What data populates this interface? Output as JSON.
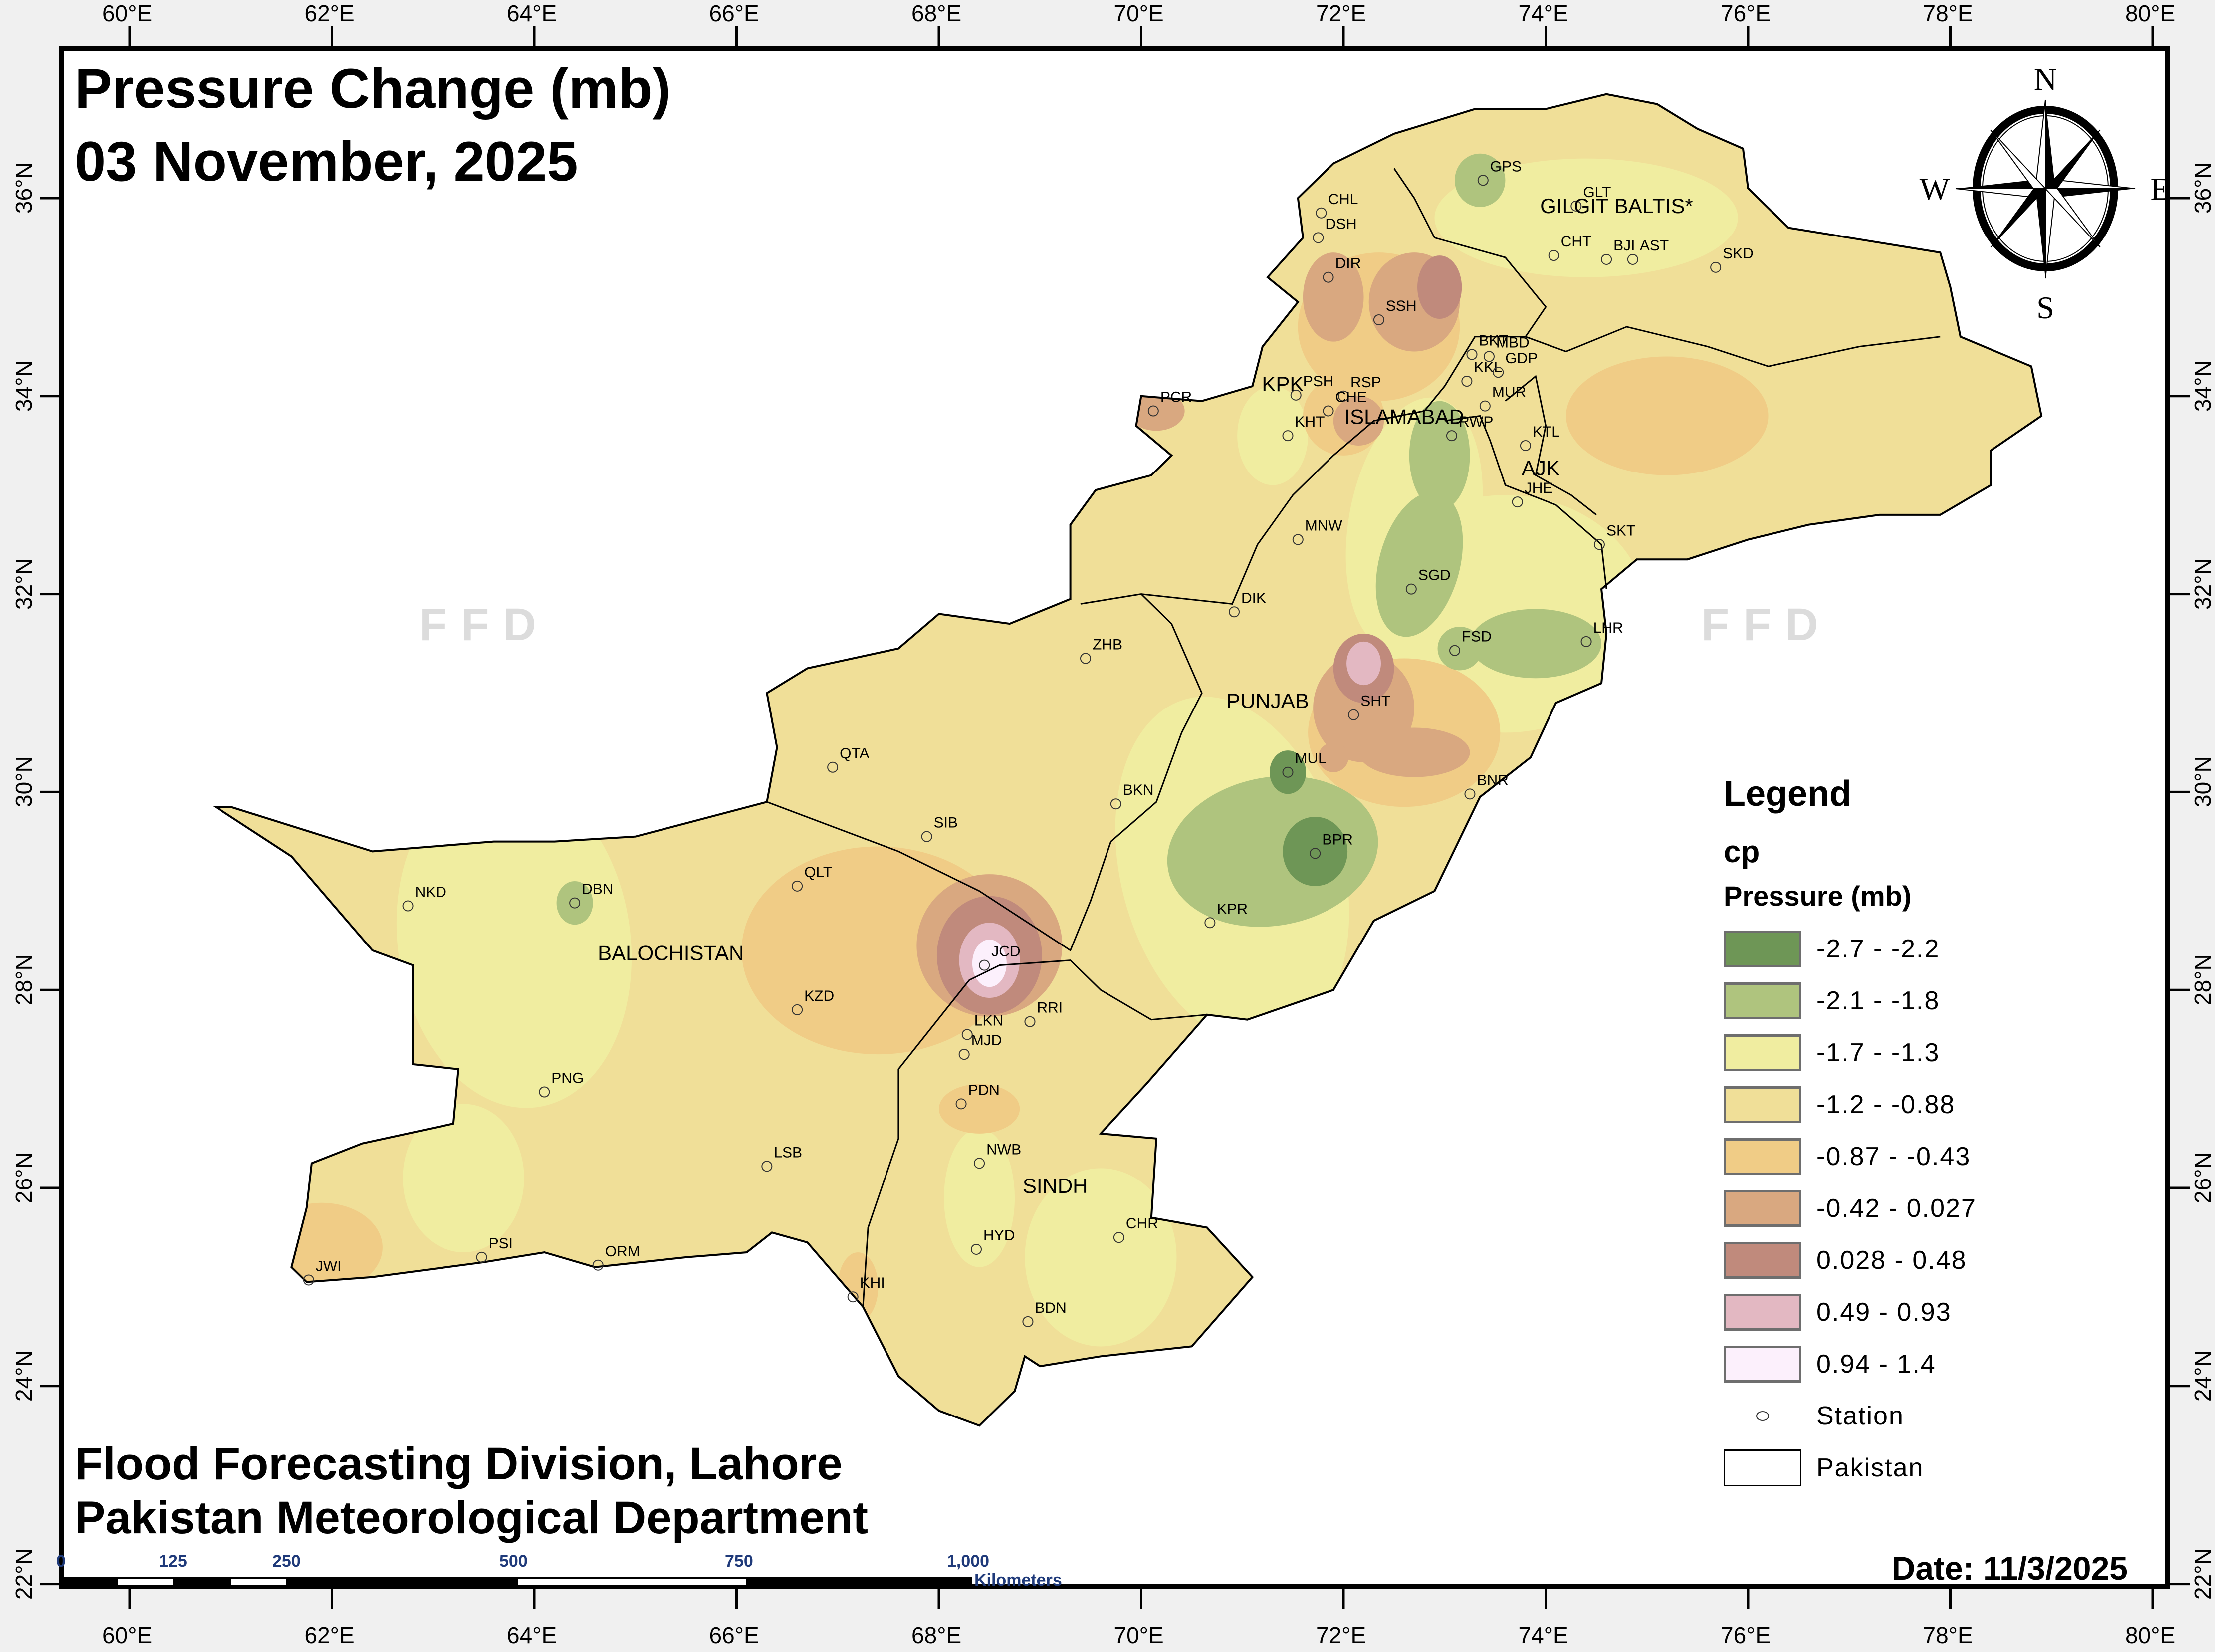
{
  "header": {
    "title_line1": "Pressure Change (mb)",
    "title_line2": "03 November, 2025"
  },
  "footer": {
    "credit_line1": "Flood Forecasting Division, Lahore",
    "credit_line2": "Pakistan Meteorological Department",
    "date_label": "Date: 11/3/2025"
  },
  "watermark": "FFD",
  "compass": {
    "n": "N",
    "s": "S",
    "e": "E",
    "w": "W"
  },
  "axes": {
    "longitude_ticks": [
      "60°E",
      "62°E",
      "64°E",
      "66°E",
      "68°E",
      "70°E",
      "72°E",
      "74°E",
      "76°E",
      "78°E",
      "80°E"
    ],
    "latitude_ticks": [
      "36°N",
      "34°N",
      "32°N",
      "30°N",
      "28°N",
      "26°N",
      "24°N",
      "22°N"
    ]
  },
  "scale_bar": {
    "ticks": [
      "0",
      "125",
      "250",
      "500",
      "750",
      "1,000"
    ],
    "unit": "Kilometers"
  },
  "legend": {
    "title": "Legend",
    "layer": "cp",
    "field": "Pressure (mb)",
    "classes": [
      {
        "label": "-2.7 - -2.2",
        "color": "#6e9656"
      },
      {
        "label": "-2.1 - -1.8",
        "color": "#afc47e"
      },
      {
        "label": "-1.7 - -1.3",
        "color": "#f0eda0"
      },
      {
        "label": "-1.2 - -0.88",
        "color": "#f0df98"
      },
      {
        "label": "-0.87 - -0.43",
        "color": "#f0cc86"
      },
      {
        "label": "-0.42 - 0.027",
        "color": "#d9a880"
      },
      {
        "label": "0.028 - 0.48",
        "color": "#c08a7c"
      },
      {
        "label": "0.49 - 0.93",
        "color": "#e3b8c2"
      },
      {
        "label": "0.94 - 1.4",
        "color": "#fcf0fc"
      }
    ],
    "station_label": "Station",
    "boundary_label": "Pakistan"
  },
  "regions": [
    {
      "name": "GILGIT BALTIS*",
      "lon": 74.7,
      "lat": 35.85
    },
    {
      "name": "KPK",
      "lon": 71.4,
      "lat": 34.05
    },
    {
      "name": "ISLAMABAD",
      "lon": 72.6,
      "lat": 33.72
    },
    {
      "name": "AJK",
      "lon": 73.95,
      "lat": 33.2
    },
    {
      "name": "PUNJAB",
      "lon": 71.25,
      "lat": 30.85
    },
    {
      "name": "BALOCHISTAN",
      "lon": 65.35,
      "lat": 28.3
    },
    {
      "name": "SINDH",
      "lon": 69.15,
      "lat": 25.95
    }
  ],
  "stations": [
    {
      "code": "GPS",
      "lon": 73.38,
      "lat": 36.18
    },
    {
      "code": "CHL",
      "lon": 71.78,
      "lat": 35.85
    },
    {
      "code": "GLT",
      "lon": 74.3,
      "lat": 35.92
    },
    {
      "code": "DSH",
      "lon": 71.75,
      "lat": 35.6
    },
    {
      "code": "CHT",
      "lon": 74.08,
      "lat": 35.42
    },
    {
      "code": "BJI",
      "lon": 74.6,
      "lat": 35.38
    },
    {
      "code": "AST",
      "lon": 74.86,
      "lat": 35.38
    },
    {
      "code": "SKD",
      "lon": 75.68,
      "lat": 35.3
    },
    {
      "code": "DIR",
      "lon": 71.85,
      "lat": 35.2
    },
    {
      "code": "SSH",
      "lon": 72.35,
      "lat": 34.77
    },
    {
      "code": "BKT",
      "lon": 73.27,
      "lat": 34.42
    },
    {
      "code": "MBD",
      "lon": 73.44,
      "lat": 34.4
    },
    {
      "code": "KKL",
      "lon": 73.22,
      "lat": 34.15
    },
    {
      "code": "GDP",
      "lon": 73.53,
      "lat": 34.24
    },
    {
      "code": "PCR",
      "lon": 70.12,
      "lat": 33.85
    },
    {
      "code": "PSH",
      "lon": 71.53,
      "lat": 34.01
    },
    {
      "code": "RSP",
      "lon": 72.0,
      "lat": 34.0
    },
    {
      "code": "MUR",
      "lon": 73.4,
      "lat": 33.9
    },
    {
      "code": "CHE",
      "lon": 71.85,
      "lat": 33.85
    },
    {
      "code": "KHT",
      "lon": 71.45,
      "lat": 33.6
    },
    {
      "code": "RWP",
      "lon": 73.07,
      "lat": 33.6
    },
    {
      "code": "KTL",
      "lon": 73.8,
      "lat": 33.5
    },
    {
      "code": "JHE",
      "lon": 73.72,
      "lat": 32.93
    },
    {
      "code": "MNW",
      "lon": 71.55,
      "lat": 32.55
    },
    {
      "code": "SKT",
      "lon": 74.53,
      "lat": 32.5
    },
    {
      "code": "SGD",
      "lon": 72.67,
      "lat": 32.05
    },
    {
      "code": "DIK",
      "lon": 70.92,
      "lat": 31.82
    },
    {
      "code": "FSD",
      "lon": 73.1,
      "lat": 31.43
    },
    {
      "code": "LHR",
      "lon": 74.4,
      "lat": 31.52
    },
    {
      "code": "ZHB",
      "lon": 69.45,
      "lat": 31.35
    },
    {
      "code": "SHT",
      "lon": 72.1,
      "lat": 30.78
    },
    {
      "code": "QTA",
      "lon": 66.95,
      "lat": 30.25
    },
    {
      "code": "MUL",
      "lon": 71.45,
      "lat": 30.2
    },
    {
      "code": "BNR",
      "lon": 73.25,
      "lat": 29.98
    },
    {
      "code": "BKN",
      "lon": 69.75,
      "lat": 29.88
    },
    {
      "code": "SIB",
      "lon": 67.88,
      "lat": 29.55
    },
    {
      "code": "BPR",
      "lon": 71.72,
      "lat": 29.38
    },
    {
      "code": "QLT",
      "lon": 66.6,
      "lat": 29.05
    },
    {
      "code": "NKD",
      "lon": 62.75,
      "lat": 28.85
    },
    {
      "code": "DBN",
      "lon": 64.4,
      "lat": 28.88
    },
    {
      "code": "KPR",
      "lon": 70.68,
      "lat": 28.68
    },
    {
      "code": "JCD",
      "lon": 68.45,
      "lat": 28.25
    },
    {
      "code": "KZD",
      "lon": 66.6,
      "lat": 27.8
    },
    {
      "code": "RRI",
      "lon": 68.9,
      "lat": 27.68
    },
    {
      "code": "LKN",
      "lon": 68.28,
      "lat": 27.55
    },
    {
      "code": "MJD",
      "lon": 68.25,
      "lat": 27.35
    },
    {
      "code": "PNG",
      "lon": 64.1,
      "lat": 26.97
    },
    {
      "code": "PDN",
      "lon": 68.22,
      "lat": 26.85
    },
    {
      "code": "NWB",
      "lon": 68.4,
      "lat": 26.25
    },
    {
      "code": "LSB",
      "lon": 66.3,
      "lat": 26.22
    },
    {
      "code": "CHR",
      "lon": 69.78,
      "lat": 25.5
    },
    {
      "code": "PSI",
      "lon": 63.48,
      "lat": 25.3
    },
    {
      "code": "HYD",
      "lon": 68.37,
      "lat": 25.38
    },
    {
      "code": "ORM",
      "lon": 64.63,
      "lat": 25.22
    },
    {
      "code": "JWI",
      "lon": 61.77,
      "lat": 25.07
    },
    {
      "code": "KHI",
      "lon": 67.15,
      "lat": 24.9
    },
    {
      "code": "BDN",
      "lon": 68.88,
      "lat": 24.65
    }
  ]
}
